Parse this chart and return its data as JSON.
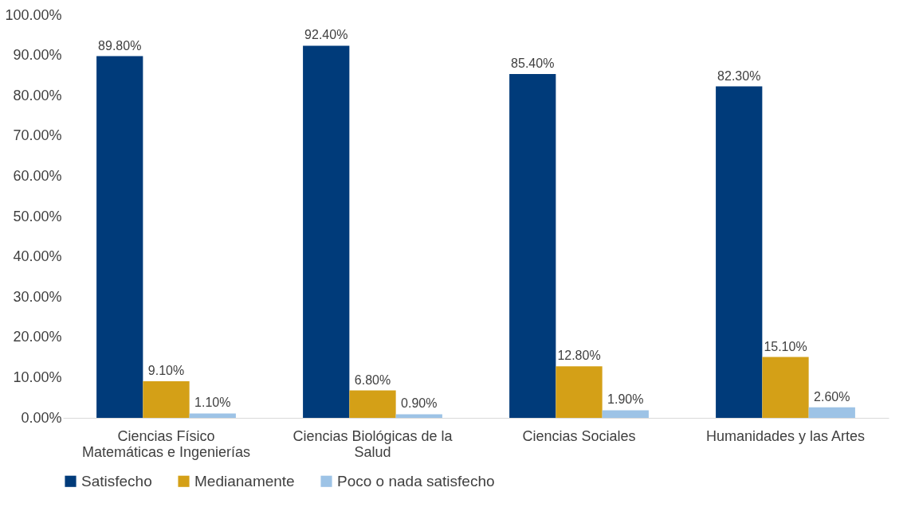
{
  "chart_data": {
    "type": "bar",
    "categories": [
      "Ciencias Físico Matemáticas e Ingenierías",
      "Ciencias Biológicas de la Salud",
      "Ciencias Sociales",
      "Humanidades y las Artes"
    ],
    "series": [
      {
        "name": "Satisfecho",
        "color": "#003b7a",
        "values": [
          89.8,
          92.4,
          85.4,
          82.3
        ],
        "value_labels": [
          "89.80%",
          "92.40%",
          "85.40%",
          "82.30%"
        ]
      },
      {
        "name": "Medianamente",
        "color": "#d4a017",
        "values": [
          9.1,
          6.8,
          12.8,
          15.1
        ],
        "value_labels": [
          "9.10%",
          "6.80%",
          "12.80%",
          "15.10%"
        ]
      },
      {
        "name": "Poco o nada satisfecho",
        "color": "#9dc3e6",
        "values": [
          1.1,
          0.9,
          1.9,
          2.6
        ],
        "value_labels": [
          "1.10%",
          "0.90%",
          "1.90%",
          "2.60%"
        ]
      }
    ],
    "ylim": [
      0,
      100
    ],
    "yticks": [
      {
        "value": 0,
        "label": "0.00%"
      },
      {
        "value": 10,
        "label": "10.00%"
      },
      {
        "value": 20,
        "label": "20.00%"
      },
      {
        "value": 30,
        "label": "30.00%"
      },
      {
        "value": 40,
        "label": "40.00%"
      },
      {
        "value": 50,
        "label": "50.00%"
      },
      {
        "value": 60,
        "label": "60.00%"
      },
      {
        "value": 70,
        "label": "70.00%"
      },
      {
        "value": 80,
        "label": "80.00%"
      },
      {
        "value": 90,
        "label": "90.00%"
      },
      {
        "value": 100,
        "label": "100.00%"
      }
    ],
    "grid": false,
    "legend": "bottom"
  }
}
